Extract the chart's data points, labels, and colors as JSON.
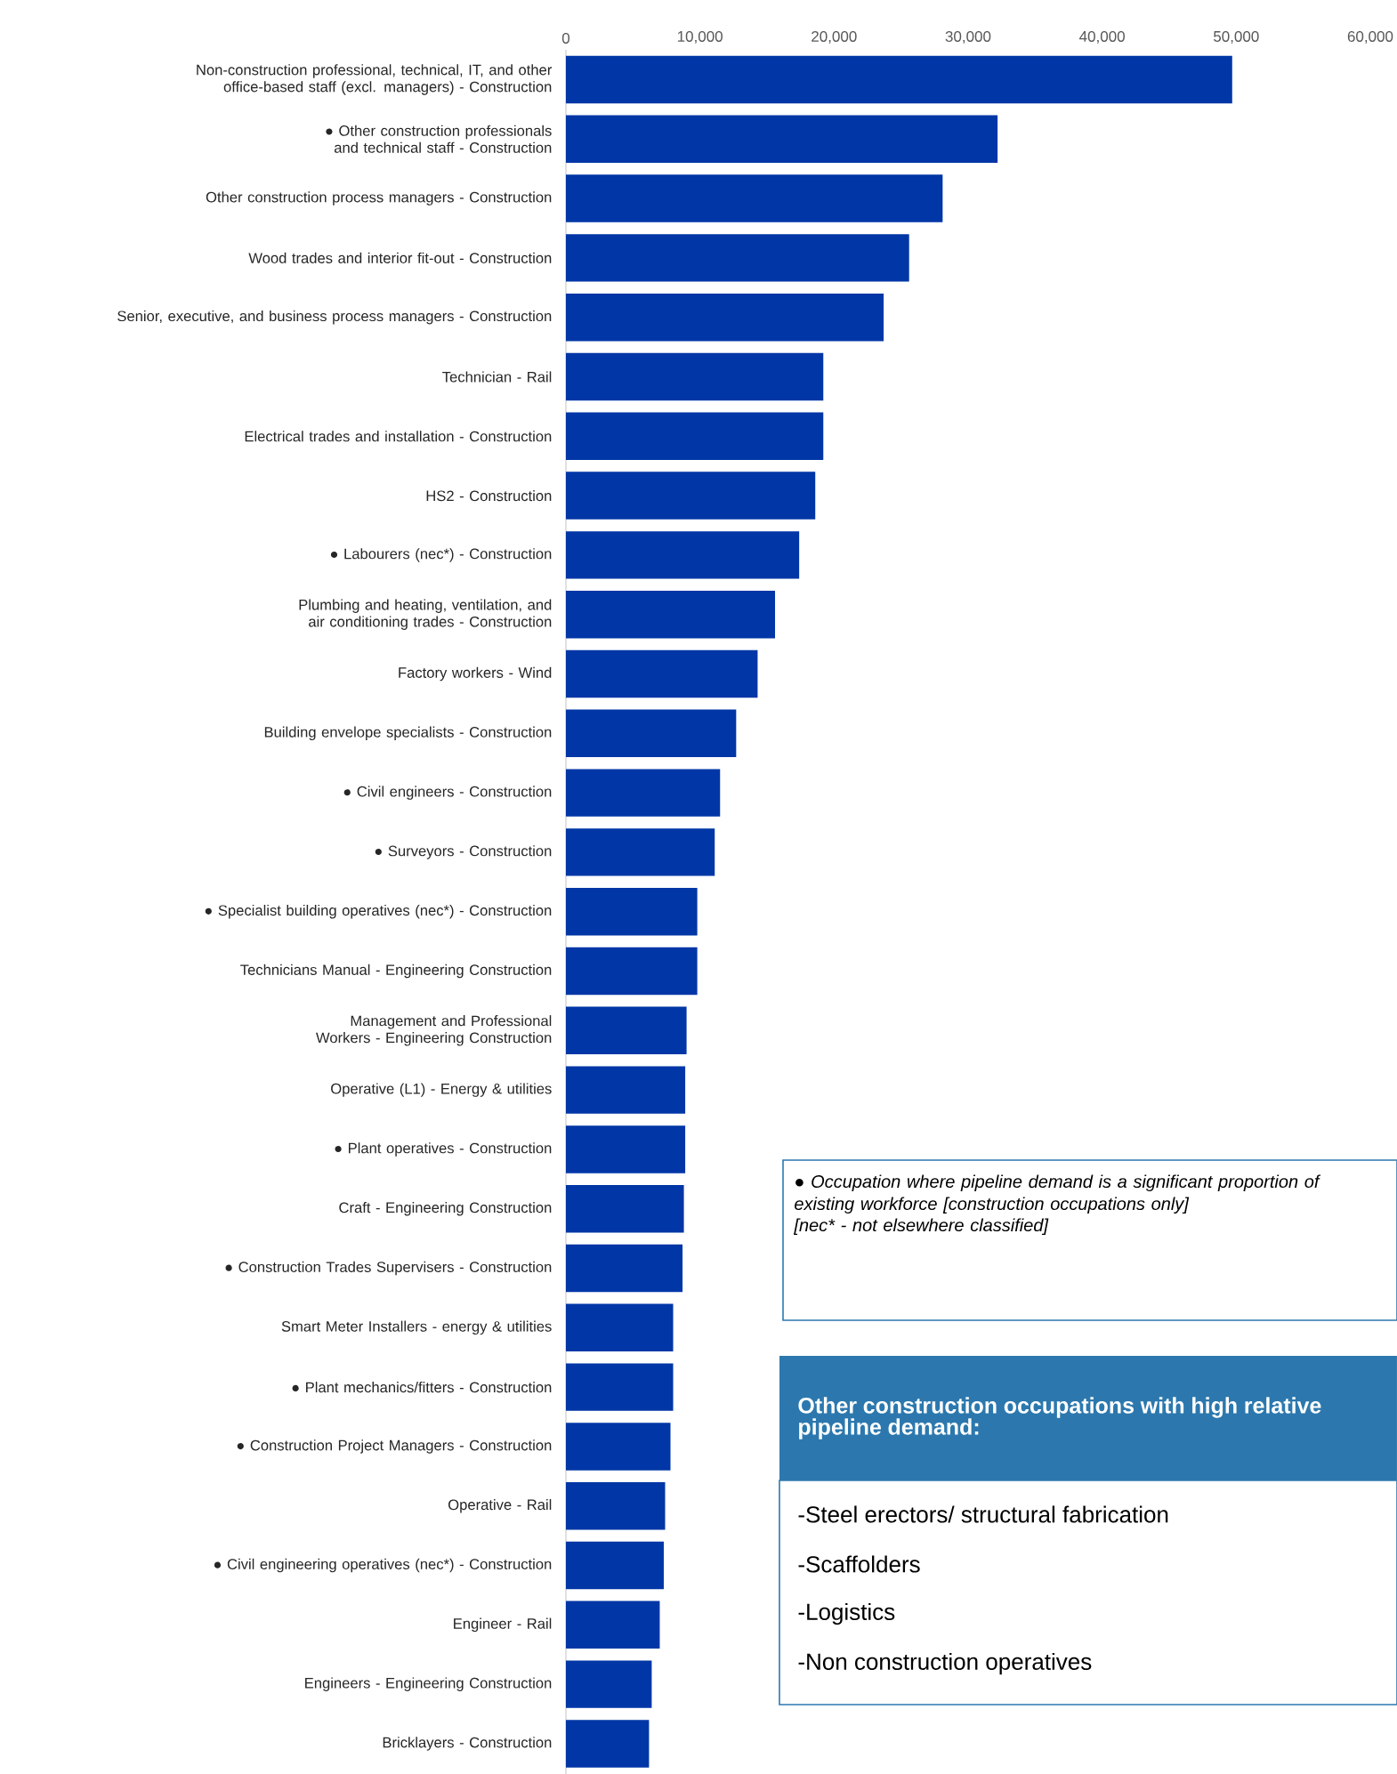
{
  "chart_data": {
    "type": "bar",
    "orientation": "horizontal",
    "color": "#0036A6",
    "categories": [
      "Non-construction professional, technical, IT, and other office-based staff (excl. managers) - Construction",
      "● Other construction professionals and technical staff - Construction",
      "Other construction process managers - Construction",
      "Wood trades and interior fit-out - Construction",
      "Senior, executive, and business process managers - Construction",
      "Technician - Rail",
      "Electrical trades and installation - Construction",
      "HS2 - Construction",
      "● Labourers (nec*) - Construction",
      "Plumbing and heating, ventilation, and air conditioning trades - Construction",
      "Factory workers - Wind",
      "Building envelope specialists - Construction",
      "● Civil engineers - Construction",
      "● Surveyors - Construction",
      "● Specialist building operatives (nec*) - Construction",
      "Technicians Manual - Engineering Construction",
      "Management and Professional Workers - Engineering Construction",
      "Operative (L1) - Energy & utilities",
      "● Plant operatives - Construction",
      "Craft - Engineering Construction",
      "● Construction Trades Supervisers - Construction",
      "Smart Meter Installers - energy & utilities",
      "● Plant mechanics/fitters - Construction",
      "● Construction Project Managers - Construction",
      "Operative - Rail",
      "● Civil engineering operatives (nec*) - Construction",
      "Engineer - Rail",
      "Engineers - Engineering Construction",
      "Bricklayers - Construction"
    ],
    "values": [
      49700,
      32200,
      28100,
      25600,
      23700,
      19200,
      19200,
      18600,
      17400,
      15600,
      14300,
      12700,
      11500,
      11100,
      9800,
      9800,
      9000,
      8900,
      8900,
      8800,
      8700,
      8000,
      8000,
      7800,
      7400,
      7300,
      7000,
      6400,
      6200
    ],
    "xlim": [
      0,
      60000
    ],
    "xticks": [
      0,
      {
        "value": 10000,
        "label": "10,000"
      },
      {
        "value": 20000,
        "label": "20,000"
      },
      {
        "value": 30000,
        "label": "30,000"
      },
      {
        "value": 40000,
        "label": "40,000"
      },
      {
        "value": 50000,
        "label": "50,000"
      },
      {
        "value": 60000,
        "label": "60,000"
      }
    ],
    "annotations": [
      "● Occupation where pipeline demand is a significant proportion of existing workforce [construction occupations only]",
      "[nec* - not elsewhere classified]",
      "Other construction occupations with high relative pipeline demand:",
      "-Steel erectors/ structural fabrication",
      "-Scaffolders",
      "-Logistics",
      "-Non construction operatives"
    ]
  }
}
